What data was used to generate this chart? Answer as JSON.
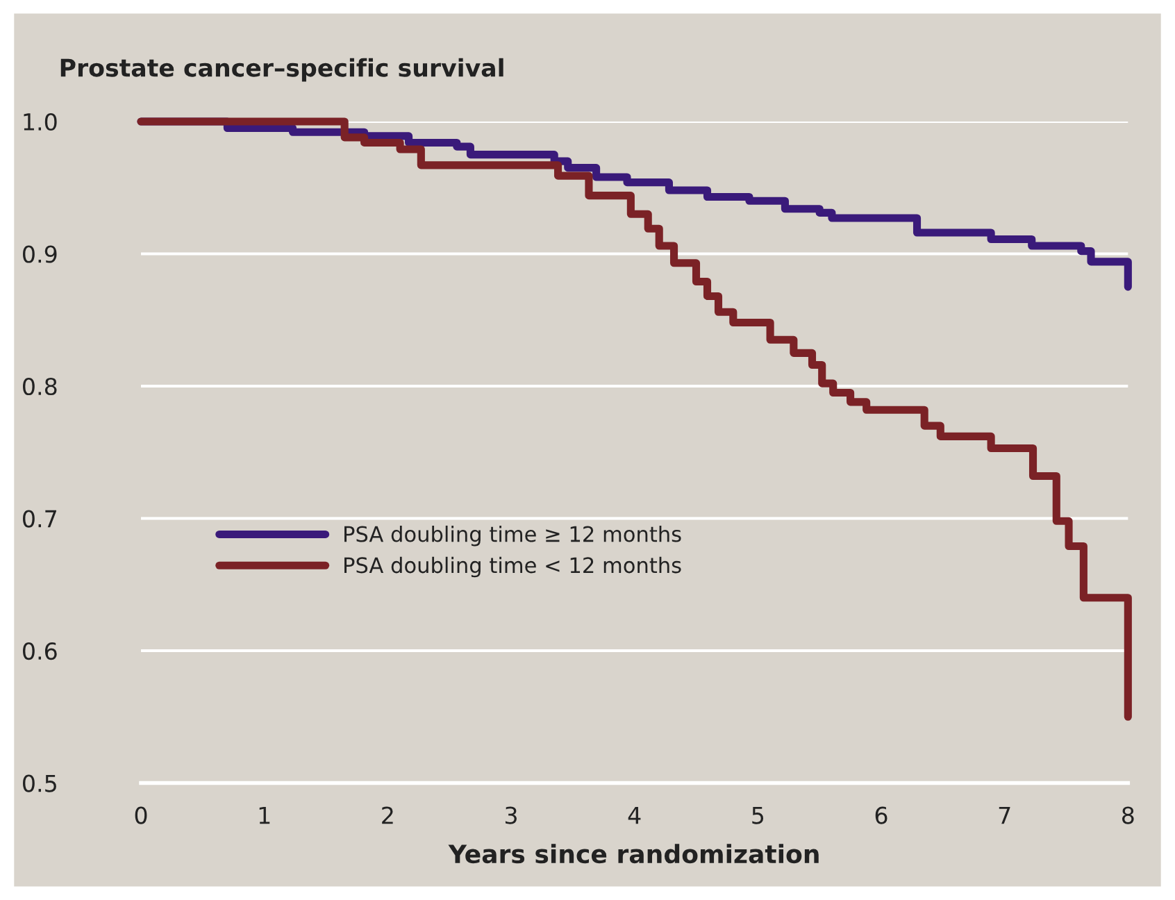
{
  "chart_data": {
    "type": "step",
    "title": "Prostate cancer–specific survival",
    "xlabel": "Years since randomization",
    "xlim": [
      0,
      8
    ],
    "xticks": [
      0,
      1,
      2,
      3,
      4,
      5,
      6,
      7,
      8
    ],
    "ylim": [
      0.5,
      1.0
    ],
    "yticks": [
      {
        "value": 0.5,
        "label": "0.5"
      },
      {
        "value": 0.6,
        "label": "0.6"
      },
      {
        "value": 0.7,
        "label": "0.7"
      },
      {
        "value": 0.8,
        "label": "0.8"
      },
      {
        "value": 0.9,
        "label": "0.9"
      },
      {
        "value": 1.0,
        "label": "1.0"
      }
    ],
    "grid": "y",
    "legend": "left",
    "series": [
      {
        "name": "PSA doubling time ≥ 12 months",
        "color": "#3a1a7a",
        "x": [
          0,
          0.7,
          1.23,
          1.81,
          2.17,
          2.56,
          2.67,
          3.35,
          3.46,
          3.69,
          3.94,
          4.28,
          4.59,
          4.93,
          5.22,
          5.5,
          5.6,
          6.29,
          6.89,
          7.22,
          7.62,
          7.7,
          8.0
        ],
        "values": [
          1.0,
          0.995,
          0.992,
          0.989,
          0.984,
          0.981,
          0.975,
          0.97,
          0.965,
          0.958,
          0.954,
          0.948,
          0.943,
          0.94,
          0.934,
          0.931,
          0.927,
          0.916,
          0.911,
          0.906,
          0.902,
          0.894,
          0.875
        ]
      },
      {
        "name": "PSA doubling time < 12 months",
        "color": "#7b2226",
        "x": [
          0,
          1.65,
          1.81,
          2.1,
          2.27,
          3.38,
          3.63,
          3.97,
          4.11,
          4.2,
          4.32,
          4.5,
          4.59,
          4.68,
          4.8,
          5.1,
          5.29,
          5.44,
          5.52,
          5.61,
          5.75,
          5.88,
          6.35,
          6.48,
          6.89,
          7.23,
          7.42,
          7.52,
          7.64,
          8.0
        ],
        "values": [
          1.0,
          0.988,
          0.984,
          0.979,
          0.967,
          0.959,
          0.944,
          0.93,
          0.919,
          0.906,
          0.893,
          0.879,
          0.868,
          0.856,
          0.848,
          0.835,
          0.825,
          0.816,
          0.802,
          0.795,
          0.788,
          0.782,
          0.77,
          0.762,
          0.753,
          0.732,
          0.698,
          0.679,
          0.64,
          0.55
        ]
      }
    ]
  }
}
